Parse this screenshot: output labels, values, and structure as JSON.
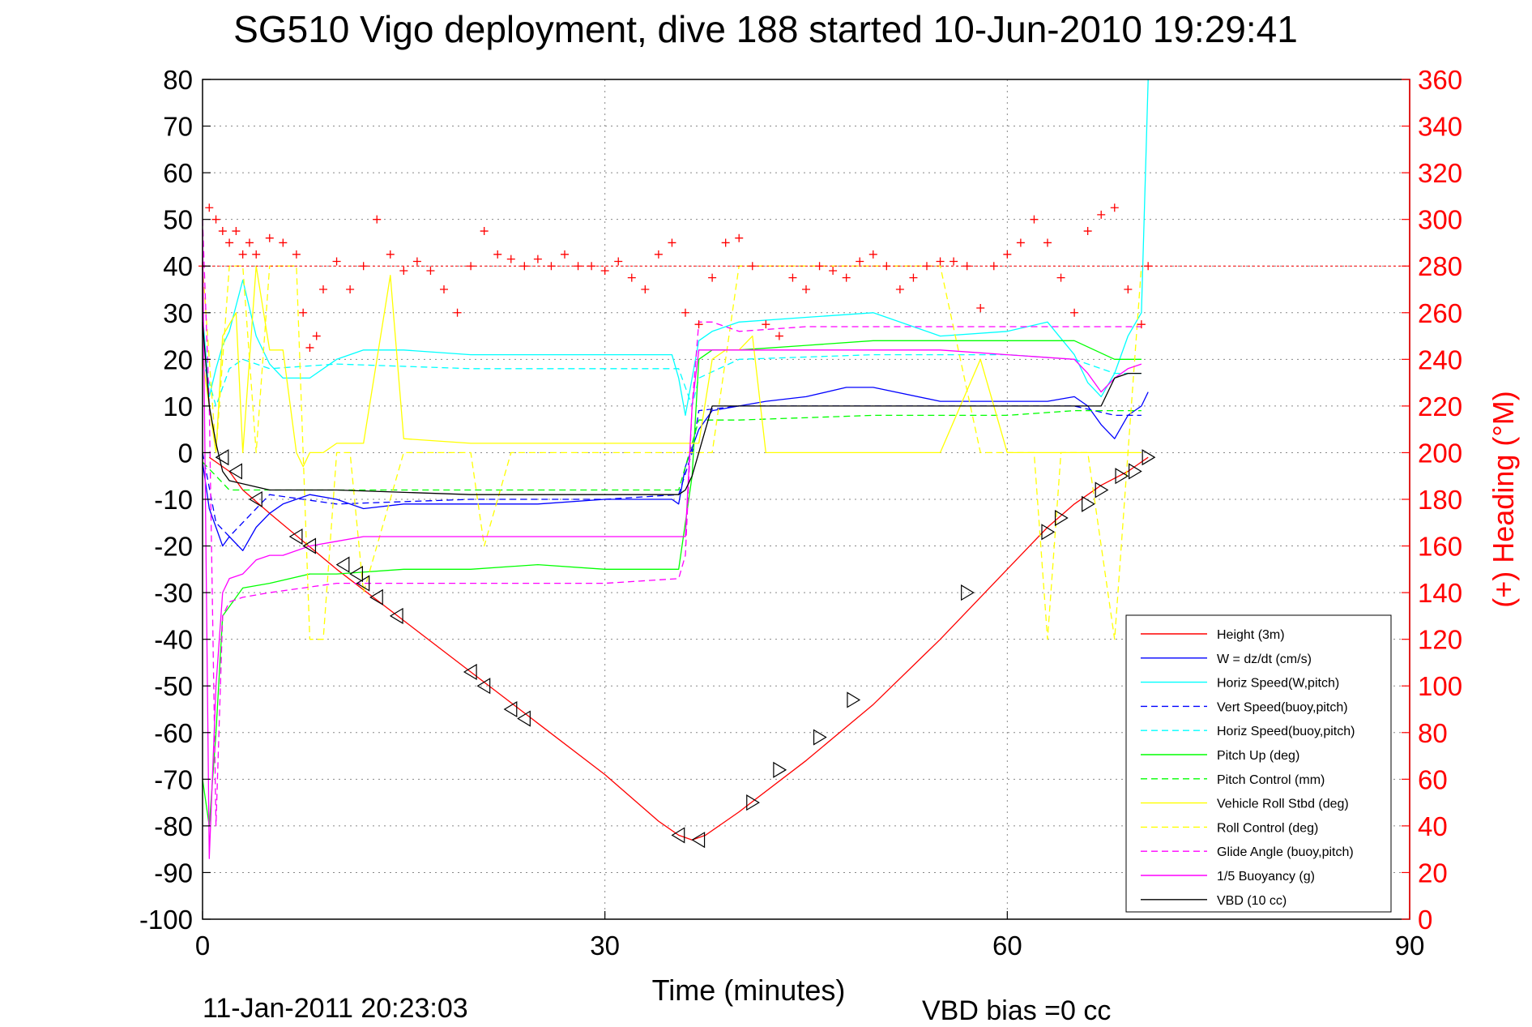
{
  "chart_data": {
    "type": "line",
    "title": "SG510 Vigo deployment, dive 188 started 10-Jun-2010 19:29:41",
    "xlabel": "Time (minutes)",
    "ylabel_right": "(+) Heading (°M)",
    "footer_left": "11-Jan-2011 20:23:03",
    "footer_right": "VBD bias =0 cc",
    "xlim": [
      0,
      90
    ],
    "ylim": [
      -100,
      80
    ],
    "ylim_right": [
      0,
      360
    ],
    "x_ticks": [
      0,
      30,
      60,
      90
    ],
    "y_ticks": [
      80,
      70,
      60,
      50,
      40,
      30,
      20,
      10,
      0,
      -10,
      -20,
      -30,
      -40,
      -50,
      -60,
      -70,
      -80,
      -90,
      -100
    ],
    "y_ticks_right": [
      360,
      340,
      320,
      300,
      280,
      260,
      240,
      220,
      200,
      180,
      160,
      140,
      120,
      100,
      80,
      60,
      40,
      20,
      0
    ],
    "grid": true,
    "legend_position": "bottom-right",
    "colors": {
      "left_axis": "#000000",
      "right_axis": "#ff0000",
      "grid": "#888888"
    },
    "series": [
      {
        "name": "Height (3m)",
        "color": "#ff0000",
        "dash": "solid",
        "x": [
          0.5,
          1,
          2,
          3,
          5,
          10,
          15,
          20,
          25,
          30,
          34,
          35.5,
          36.5,
          37.5,
          40,
          45,
          50,
          55,
          60,
          63,
          65,
          67,
          69,
          70.5
        ],
        "y": [
          -1,
          -2,
          -4,
          -8,
          -13,
          -25,
          -36,
          -47,
          -58,
          -69,
          -79,
          -82,
          -83,
          -82,
          -77,
          -66,
          -54,
          -40,
          -25,
          -16,
          -11,
          -7,
          -4,
          -1
        ]
      },
      {
        "name": "W = dz/dt (cm/s)",
        "color": "#0000ff",
        "dash": "solid",
        "x": [
          0,
          0.5,
          1,
          1.5,
          2,
          3,
          4,
          5,
          6,
          8,
          10,
          12,
          15,
          20,
          25,
          30,
          35,
          35.5,
          36,
          37,
          38,
          40,
          42,
          45,
          48,
          50,
          55,
          60,
          63,
          65,
          66,
          67,
          68,
          69,
          70,
          70.5
        ],
        "y": [
          -2,
          -12,
          -16,
          -20,
          -18,
          -21,
          -16,
          -13,
          -11,
          -9,
          -10,
          -12,
          -11,
          -11,
          -11,
          -10,
          -10,
          -11,
          -3,
          5,
          9,
          10,
          11,
          12,
          14,
          14,
          11,
          11,
          11,
          12,
          10,
          6,
          3,
          8,
          10,
          13
        ]
      },
      {
        "name": "Horiz Speed(W,pitch)",
        "color": "#00ffff",
        "dash": "solid",
        "x": [
          0,
          0.5,
          1,
          1.5,
          2,
          3,
          4,
          5,
          6,
          8,
          10,
          12,
          15,
          20,
          25,
          30,
          35,
          35.5,
          36,
          37,
          38,
          40,
          45,
          50,
          55,
          60,
          63,
          65,
          66,
          67,
          68,
          69,
          70,
          70.3,
          70.5
        ],
        "y": [
          30,
          12,
          18,
          23,
          26,
          37,
          25,
          19,
          16,
          16,
          20,
          22,
          22,
          21,
          21,
          21,
          21,
          16,
          8,
          24,
          26,
          28,
          29,
          30,
          25,
          26,
          28,
          21,
          15,
          12,
          17,
          25,
          30,
          60,
          80
        ]
      },
      {
        "name": "Vert Speed(buoy,pitch)",
        "color": "#0000ff",
        "dash": "dashed",
        "x": [
          0,
          1,
          2,
          5,
          10,
          20,
          30,
          35.5,
          36.5,
          37,
          40,
          50,
          60,
          65,
          68,
          70
        ],
        "y": [
          0,
          -15,
          -18,
          -9,
          -11,
          -10,
          -10,
          -9,
          0,
          9,
          10,
          10,
          10,
          10,
          8,
          8
        ]
      },
      {
        "name": "Horiz Speed(buoy,pitch)",
        "color": "#00ffff",
        "dash": "dashed",
        "x": [
          0,
          1,
          2,
          3,
          5,
          10,
          20,
          30,
          35.5,
          36.5,
          37,
          40,
          50,
          60,
          65,
          68,
          70
        ],
        "y": [
          20,
          10,
          18,
          20,
          18,
          19,
          18,
          18,
          18,
          10,
          16,
          20,
          21,
          21,
          20,
          17,
          17
        ]
      },
      {
        "name": "Pitch Up (deg)",
        "color": "#00ff00",
        "dash": "solid",
        "x": [
          0,
          0.5,
          1,
          1.5,
          2,
          3,
          5,
          8,
          10,
          15,
          20,
          25,
          30,
          35.5,
          36.5,
          37,
          38,
          40,
          45,
          50,
          55,
          60,
          65,
          68,
          70
        ],
        "y": [
          -70,
          -80,
          -60,
          -35,
          -33,
          -29,
          -28,
          -26,
          -26,
          -25,
          -25,
          -24,
          -25,
          -25,
          -5,
          20,
          22,
          22,
          23,
          24,
          24,
          24,
          24,
          20,
          20
        ]
      },
      {
        "name": "Pitch Control (mm)",
        "color": "#00ff00",
        "dash": "dashed",
        "x": [
          0,
          1,
          2,
          5,
          10,
          20,
          30,
          35.5,
          36.5,
          37,
          40,
          50,
          60,
          65,
          68,
          70
        ],
        "y": [
          -2,
          -5,
          -8,
          -8,
          -8,
          -8,
          -8,
          -8,
          2,
          7,
          7,
          8,
          8,
          9,
          9,
          9
        ]
      },
      {
        "name": "Vehicle Roll Stbd (deg)",
        "color": "#ffff00",
        "dash": "solid",
        "x": [
          0,
          1,
          1.5,
          2.5,
          3,
          4,
          5,
          6,
          7,
          7.5,
          8,
          9,
          10,
          12,
          14,
          15,
          20,
          25,
          30,
          35,
          36,
          37,
          38,
          39,
          40,
          41,
          42,
          44,
          46,
          48,
          50,
          55,
          58,
          60,
          62,
          64,
          66,
          67,
          68,
          69,
          70
        ],
        "y": [
          20,
          0,
          25,
          30,
          0,
          40,
          22,
          22,
          0,
          -3,
          0,
          0,
          2,
          2,
          38,
          3,
          2,
          2,
          2,
          2,
          2,
          2,
          20,
          22,
          22,
          25,
          0,
          0,
          0,
          0,
          0,
          0,
          20,
          0,
          0,
          0,
          0,
          0,
          0,
          0,
          0
        ]
      },
      {
        "name": "Roll Control (deg)",
        "color": "#ffff00",
        "dash": "dashed",
        "x": [
          0,
          1,
          2,
          3,
          4,
          5,
          7,
          8,
          9,
          10,
          11,
          12,
          15,
          20,
          21,
          23,
          25,
          30,
          35,
          36,
          38,
          40,
          42,
          45,
          48,
          50,
          55,
          58,
          60,
          62,
          63,
          64,
          66,
          68,
          69,
          70
        ],
        "y": [
          40,
          0,
          40,
          40,
          0,
          40,
          40,
          -40,
          -40,
          0,
          0,
          -30,
          0,
          0,
          -20,
          0,
          0,
          0,
          0,
          0,
          0,
          40,
          40,
          40,
          40,
          40,
          40,
          0,
          0,
          0,
          -40,
          0,
          0,
          -40,
          0,
          40
        ]
      },
      {
        "name": "Glide Angle (buoy,pitch)",
        "color": "#ff00ff",
        "dash": "dashed",
        "x": [
          0,
          0.5,
          1,
          1.5,
          2,
          3,
          5,
          10,
          15,
          20,
          25,
          30,
          35.5,
          36,
          36.5,
          37,
          38,
          40,
          45,
          50,
          55,
          60,
          65,
          68,
          70
        ],
        "y": [
          50,
          10,
          -80,
          -35,
          -32,
          -31,
          -30,
          -28,
          -28,
          -28,
          -28,
          -28,
          -27,
          -22,
          10,
          28,
          28,
          26,
          27,
          27,
          27,
          27,
          27,
          27,
          27
        ]
      },
      {
        "name": "1/5 Buoyancy (g)",
        "color": "#ff00ff",
        "dash": "solid",
        "x": [
          0,
          0.5,
          1,
          1.5,
          2,
          3,
          4,
          5,
          6,
          8,
          10,
          12,
          15,
          20,
          25,
          30,
          35.5,
          36,
          36.5,
          37,
          38,
          40,
          45,
          50,
          55,
          60,
          65,
          66,
          67,
          68,
          69,
          70
        ],
        "y": [
          48,
          -87,
          -50,
          -30,
          -27,
          -26,
          -23,
          -22,
          -22,
          -20,
          -19,
          -18,
          -18,
          -18,
          -18,
          -18,
          -18,
          -18,
          10,
          22,
          22,
          22,
          22,
          22,
          22,
          21,
          20,
          17,
          13,
          16,
          18,
          19
        ]
      },
      {
        "name": "VBD (10 cc)",
        "color": "#000000",
        "dash": "solid",
        "x": [
          0,
          0.5,
          1,
          1.5,
          2,
          5,
          10,
          20,
          30,
          35.5,
          36,
          36.5,
          37.5,
          38,
          40,
          50,
          60,
          65,
          67,
          68,
          69,
          70
        ],
        "y": [
          28,
          10,
          2,
          -4,
          -6,
          -8,
          -8,
          -9,
          -9,
          -9,
          -8,
          -5,
          5,
          10,
          10,
          10,
          10,
          10,
          10,
          16,
          17,
          17
        ]
      }
    ],
    "heading_series": {
      "name": "(+) Heading",
      "axis": "right",
      "marker": "+",
      "color": "#ff0000",
      "reference_value": 280,
      "x": [
        0,
        0.5,
        1,
        1.5,
        2,
        2.5,
        3,
        3.5,
        4,
        5,
        6,
        7,
        7.5,
        8,
        8.5,
        9,
        10,
        11,
        12,
        13,
        14,
        15,
        16,
        17,
        18,
        19,
        20,
        21,
        22,
        23,
        24,
        25,
        26,
        27,
        28,
        29,
        30,
        31,
        32,
        33,
        34,
        35,
        36,
        37,
        38,
        39,
        40,
        41,
        42,
        43,
        44,
        45,
        46,
        47,
        48,
        49,
        50,
        51,
        52,
        53,
        54,
        55,
        56,
        57,
        58,
        59,
        60,
        61,
        62,
        63,
        64,
        65,
        66,
        67,
        68,
        69,
        70,
        70.5
      ],
      "y": [
        280,
        305,
        300,
        295,
        290,
        295,
        285,
        290,
        285,
        292,
        290,
        285,
        260,
        245,
        250,
        270,
        282,
        270,
        280,
        300,
        285,
        278,
        282,
        278,
        270,
        260,
        280,
        295,
        285,
        283,
        280,
        283,
        280,
        285,
        280,
        280,
        278,
        282,
        275,
        270,
        285,
        290,
        260,
        255,
        275,
        290,
        292,
        280,
        255,
        250,
        275,
        270,
        280,
        278,
        275,
        282,
        285,
        280,
        270,
        275,
        280,
        282,
        282,
        280,
        262,
        280,
        285,
        290,
        300,
        290,
        275,
        260,
        295,
        302,
        305,
        270,
        255,
        280
      ]
    },
    "descent_markers": {
      "marker": "left-triangle",
      "color": "#000000",
      "x": [
        1.5,
        2.5,
        4,
        7,
        8,
        10.5,
        11.5,
        12,
        13,
        14.5,
        20,
        21,
        23,
        24,
        35.5,
        37
      ],
      "y": [
        -1,
        -4,
        -10,
        -18,
        -20,
        -24,
        -26,
        -28,
        -31,
        -35,
        -47,
        -50,
        -55,
        -57,
        -82,
        -83
      ]
    },
    "climb_markers": {
      "marker": "right-triangle",
      "color": "#000000",
      "x": [
        41,
        43,
        46,
        48.5,
        57,
        63,
        64,
        66,
        67,
        68.5,
        69.5,
        70.5
      ],
      "y": [
        -75,
        -68,
        -61,
        -53,
        -30,
        -17,
        -14,
        -11,
        -8,
        -5,
        -4,
        -1
      ]
    }
  }
}
